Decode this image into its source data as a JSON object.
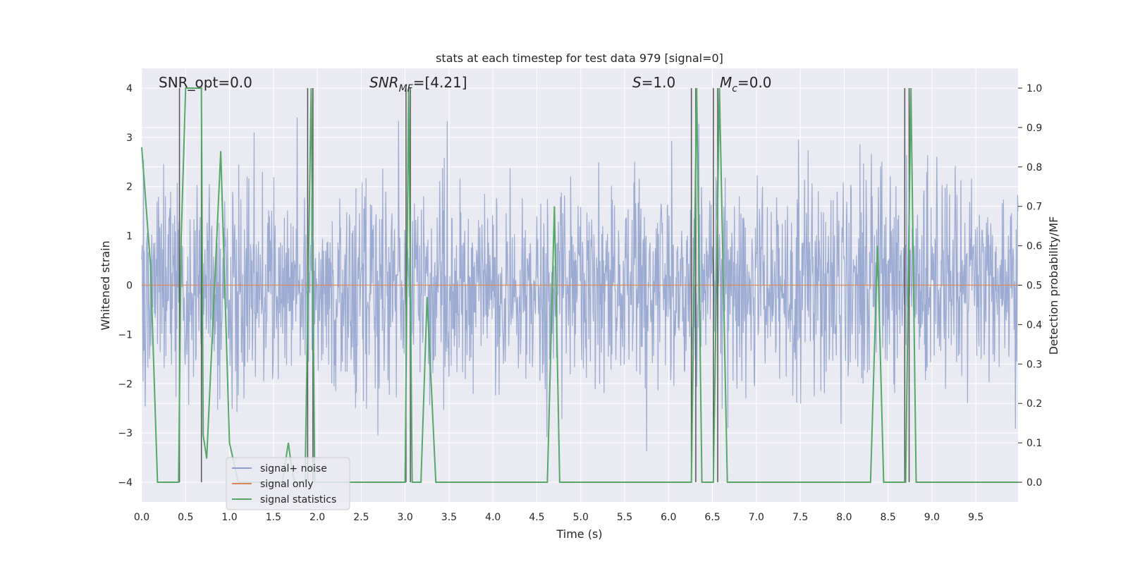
{
  "chart_data": {
    "type": "line",
    "title": "stats at each timestep for test data 979 [signal=0]",
    "xlabel": "Time (s)",
    "ylabel": "Whitened strain",
    "ylabel_right": "Detection probability/MF",
    "xlim": [
      0.0,
      9.98
    ],
    "ylim": [
      -4.4,
      4.4
    ],
    "ylim_right": [
      -0.05,
      1.05
    ],
    "grid": true,
    "legend_position": "lower-left",
    "x_tick_labels": [
      "0.0",
      "0.5",
      "1.0",
      "1.5",
      "2.0",
      "2.5",
      "3.0",
      "3.5",
      "4.0",
      "4.5",
      "5.0",
      "5.5",
      "6.0",
      "6.5",
      "7.0",
      "7.5",
      "8.0",
      "8.5",
      "9.0",
      "9.5"
    ],
    "x_ticks": [
      0.0,
      0.5,
      1.0,
      1.5,
      2.0,
      2.5,
      3.0,
      3.5,
      4.0,
      4.5,
      5.0,
      5.5,
      6.0,
      6.5,
      7.0,
      7.5,
      8.0,
      8.5,
      9.0,
      9.5
    ],
    "y_tick_labels": [
      "4",
      "3",
      "2",
      "1",
      "0",
      "−1",
      "−2",
      "−3",
      "−4"
    ],
    "y_ticks": [
      4,
      3,
      2,
      1,
      0,
      -1,
      -2,
      -3,
      -4
    ],
    "y2_tick_labels": [
      "1.0",
      "0.9",
      "0.8",
      "0.7",
      "0.6",
      "0.5",
      "0.4",
      "0.3",
      "0.2",
      "0.1",
      "0.0"
    ],
    "y2_ticks": [
      1.0,
      0.9,
      0.8,
      0.7,
      0.6,
      0.5,
      0.4,
      0.3,
      0.2,
      0.1,
      0.0
    ],
    "annotations": {
      "snr_opt": "SNR_opt=0.0",
      "snr_mf_base": "SNR",
      "snr_mf_sub": "MF",
      "snr_mf_value": "=[4.21]",
      "s_base": "S",
      "s_value": "=1.0",
      "mc_base": "M",
      "mc_sub": "c",
      "mc_value": "=0.0"
    },
    "legend": [
      {
        "label": "signal+ noise",
        "color": "#8da0cb"
      },
      {
        "label": "signal only",
        "color": "#dd8452"
      },
      {
        "label": "signal statistics",
        "color": "#55a868"
      }
    ],
    "series": [
      {
        "name": "signal+ noise",
        "color": "#8da0cb",
        "style": "dense-noise",
        "sample_rate": 200,
        "rms": 1.0,
        "x_range": [
          0.0,
          9.98
        ]
      },
      {
        "name": "signal only",
        "color": "#dd8452",
        "style": "flat",
        "value": 0.0
      },
      {
        "name": "signal statistics",
        "color": "#55a868",
        "axis": "right",
        "x": [
          0.0,
          0.1,
          0.18,
          0.42,
          0.45,
          0.5,
          0.68,
          0.7,
          0.74,
          0.9,
          1.0,
          1.1,
          1.35,
          1.4,
          1.6,
          1.67,
          1.7,
          1.74,
          1.86,
          1.93,
          1.97,
          2.05,
          2.1,
          2.5,
          2.6,
          2.65,
          2.75,
          2.8,
          3.0,
          3.04,
          3.08,
          3.13,
          3.18,
          3.25,
          3.35,
          3.4,
          3.7,
          4.0,
          4.3,
          4.6,
          4.62,
          4.7,
          4.76,
          4.9,
          5.2,
          5.5,
          5.8,
          6.1,
          6.26,
          6.32,
          6.38,
          6.45,
          6.51,
          6.58,
          6.67,
          6.72,
          7.0,
          7.5,
          8.0,
          8.3,
          8.38,
          8.45,
          8.5,
          8.7,
          8.76,
          8.82,
          9.0,
          9.5,
          9.98
        ],
        "y": [
          0.85,
          0.55,
          0.0,
          0.0,
          0.62,
          1.0,
          1.0,
          0.12,
          0.06,
          0.84,
          0.1,
          0.0,
          0.0,
          0.0,
          0.0,
          0.1,
          0.05,
          0.0,
          0.0,
          1.0,
          0.0,
          0.0,
          0.0,
          0.0,
          0.0,
          0.0,
          0.0,
          0.0,
          0.0,
          1.0,
          0.0,
          0.0,
          0.0,
          0.47,
          0.0,
          0.0,
          0.0,
          0.0,
          0.0,
          0.0,
          0.0,
          0.7,
          0.0,
          0.0,
          0.0,
          0.0,
          0.0,
          0.0,
          0.0,
          1.0,
          0.0,
          0.0,
          0.0,
          1.0,
          0.0,
          0.0,
          0.0,
          0.0,
          0.0,
          0.0,
          0.6,
          0.0,
          0.0,
          0.0,
          1.0,
          0.0,
          0.0,
          0.0,
          0.0
        ]
      }
    ],
    "vertical_markers_x": [
      0.43,
      0.68,
      1.89,
      1.95,
      3.01,
      3.06,
      6.26,
      6.31,
      6.51,
      6.56,
      8.69,
      8.74
    ],
    "marker_color": "#555555"
  }
}
